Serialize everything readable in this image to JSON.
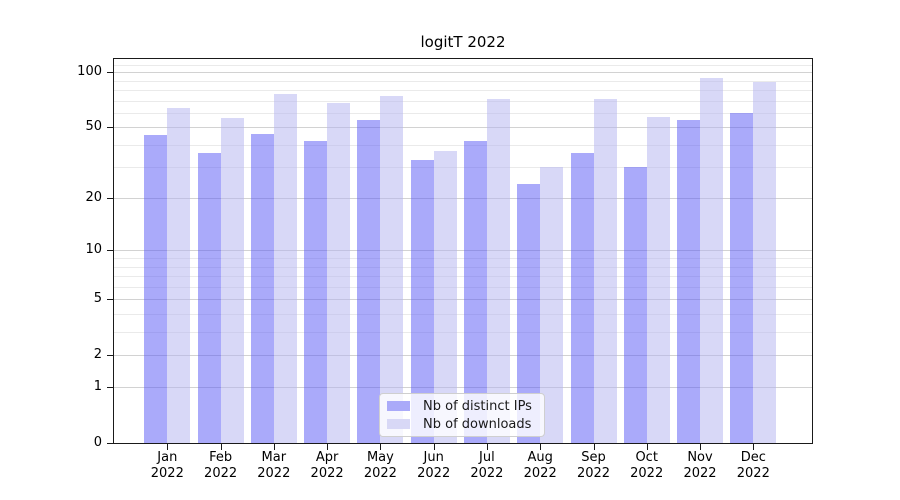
{
  "title": "logitT 2022",
  "colors": {
    "bar_distinct_ips": "rgba(85,85,245,0.5)",
    "bar_downloads": "rgba(177,177,239,0.5)",
    "legend_swatch_distinct_ips": "#aaaaf9",
    "legend_swatch_downloads": "#d8d8f6",
    "grid_major": "#d2d2d2",
    "grid_minor": "#eaeaea",
    "axis": "#1a1a1a"
  },
  "legend": {
    "position": "lower center"
  },
  "chart_data": {
    "type": "bar",
    "title": "logitT 2022",
    "categories": [
      "Jan 2022",
      "Feb 2022",
      "Mar 2022",
      "Apr 2022",
      "May 2022",
      "Jun 2022",
      "Jul 2022",
      "Aug 2022",
      "Sep 2022",
      "Oct 2022",
      "Nov 2022",
      "Dec 2022"
    ],
    "series": [
      {
        "name": "Nb of distinct IPs",
        "values": [
          45,
          36,
          46,
          42,
          55,
          33,
          42,
          24,
          36,
          30,
          55,
          60
        ]
      },
      {
        "name": "Nb of downloads",
        "values": [
          64,
          56,
          76,
          68,
          74,
          37,
          71,
          30,
          71,
          57,
          93,
          89
        ]
      }
    ],
    "xlabel": "",
    "ylabel": "",
    "y_scale": "log(1+x)",
    "ylim": [
      0,
      120
    ],
    "y_ticks": [
      0,
      1,
      2,
      5,
      10,
      20,
      50,
      100
    ],
    "y_minor_gridlines": [
      3,
      4,
      6,
      7,
      8,
      9,
      30,
      40,
      60,
      70,
      80,
      90,
      110
    ],
    "grid": "on",
    "legend_position": "lower center"
  }
}
